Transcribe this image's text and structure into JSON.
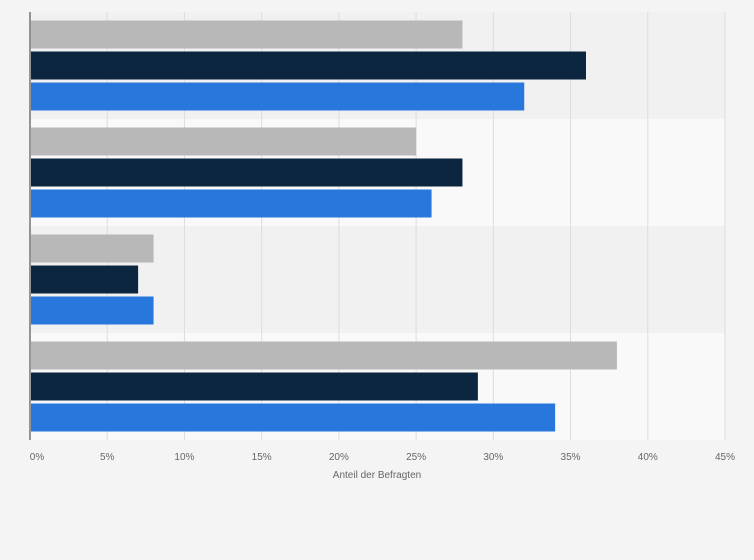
{
  "chart_data": {
    "type": "bar",
    "orientation": "horizontal",
    "categories": [
      "",
      "",
      "",
      ""
    ],
    "series": [
      {
        "color": "#b8b8b8",
        "values": [
          28,
          25,
          8,
          38
        ]
      },
      {
        "color": "#0d2640",
        "values": [
          36,
          28,
          7,
          29
        ]
      },
      {
        "color": "#2777dc",
        "values": [
          32,
          26,
          8,
          34
        ]
      }
    ],
    "xlim": [
      0,
      45
    ],
    "xticks": [
      "0%",
      "5%",
      "10%",
      "15%",
      "20%",
      "25%",
      "30%",
      "35%",
      "40%",
      "45%"
    ],
    "xlabel": "Anteil der Befragten",
    "ylabel": "",
    "title": "",
    "grid": true,
    "legend": "none"
  }
}
